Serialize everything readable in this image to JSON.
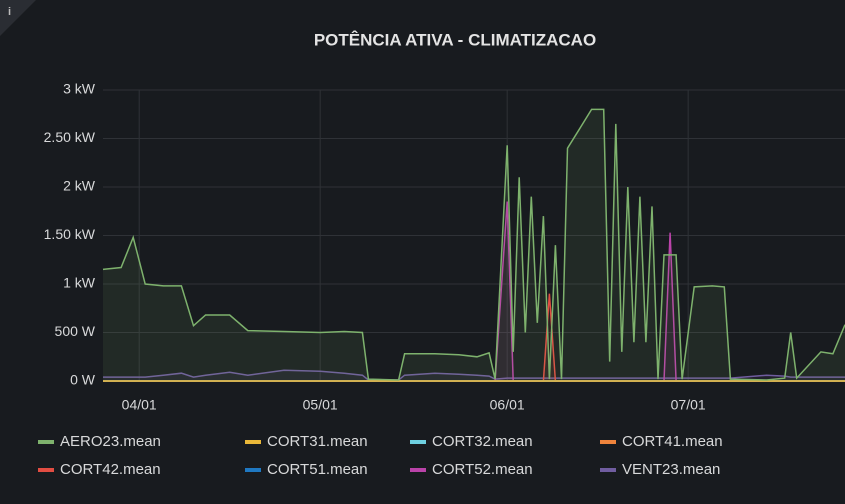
{
  "chart_data": {
    "type": "line",
    "title": "POTÊNCIA ATIVA - CLIMATIZACAO",
    "x": [
      "03/26",
      "03/29",
      "03/31",
      "04/02",
      "04/05",
      "04/08",
      "04/10",
      "04/12",
      "04/16",
      "04/19",
      "04/25",
      "05/01",
      "05/05",
      "05/08",
      "05/09",
      "05/14",
      "05/15",
      "05/20",
      "05/24",
      "05/27",
      "05/29",
      "05/30",
      "06/01",
      "06/02",
      "06/03",
      "06/04",
      "06/05",
      "06/06",
      "06/07",
      "06/08",
      "06/09",
      "06/10",
      "06/11",
      "06/13",
      "06/15",
      "06/17",
      "06/18",
      "06/19",
      "06/20",
      "06/21",
      "06/22",
      "06/23",
      "06/24",
      "06/25",
      "06/26",
      "06/27",
      "06/28",
      "06/29",
      "06/30",
      "07/02",
      "07/05",
      "07/07",
      "07/08",
      "07/14",
      "07/17",
      "07/18",
      "07/19",
      "07/23",
      "07/25",
      "07/27"
    ],
    "xlim": [
      "03/26",
      "07/27"
    ],
    "xticks": [
      "04/01",
      "05/01",
      "06/01",
      "07/01"
    ],
    "ylim": [
      0,
      3000
    ],
    "yticks": [
      {
        "value": 0,
        "label": "0 W"
      },
      {
        "value": 500,
        "label": "500 W"
      },
      {
        "value": 1000,
        "label": "1 kW"
      },
      {
        "value": 1500,
        "label": "1.50 kW"
      },
      {
        "value": 2000,
        "label": "2 kW"
      },
      {
        "value": 2500,
        "label": "2.50 kW"
      },
      {
        "value": 3000,
        "label": "3 kW"
      }
    ],
    "grid": true,
    "series": [
      {
        "name": "AERO23.mean",
        "color": "#7eb26d",
        "values": [
          1150,
          1170,
          1480,
          1000,
          980,
          980,
          570,
          680,
          680,
          520,
          510,
          500,
          510,
          500,
          20,
          10,
          280,
          280,
          270,
          250,
          290,
          20,
          2430,
          300,
          2100,
          500,
          1900,
          600,
          1700,
          20,
          1400,
          20,
          2400,
          2600,
          2800,
          2800,
          200,
          2650,
          300,
          2000,
          400,
          1900,
          400,
          1800,
          20,
          1300,
          1300,
          1300,
          20,
          970,
          980,
          970,
          20,
          10,
          30,
          500,
          30,
          300,
          280,
          580
        ]
      },
      {
        "name": "CORT31.mean",
        "color": "#eab839",
        "values": [
          0,
          0,
          0,
          0,
          0,
          0,
          0,
          0,
          0,
          0,
          0,
          0,
          0,
          0,
          0,
          0,
          0,
          0,
          0,
          0,
          0,
          0,
          0,
          0,
          0,
          0,
          0,
          0,
          0,
          0,
          0,
          0,
          0,
          0,
          0,
          0,
          0,
          0,
          0,
          0,
          0,
          0,
          0,
          0,
          0,
          0,
          0,
          0,
          0,
          0,
          0,
          0,
          0,
          0,
          0,
          0,
          0,
          0,
          0,
          0
        ]
      },
      {
        "name": "CORT32.mean",
        "color": "#6ed0e0",
        "values": [
          0,
          0,
          0,
          0,
          0,
          0,
          0,
          0,
          0,
          0,
          0,
          0,
          0,
          0,
          0,
          0,
          0,
          0,
          0,
          0,
          0,
          0,
          0,
          0,
          0,
          0,
          0,
          0,
          0,
          0,
          0,
          0,
          0,
          0,
          0,
          0,
          0,
          0,
          0,
          0,
          0,
          0,
          0,
          0,
          0,
          0,
          0,
          0,
          0,
          0,
          0,
          0,
          0,
          0,
          0,
          0,
          0,
          0,
          0,
          0
        ]
      },
      {
        "name": "CORT41.mean",
        "color": "#ef843c",
        "values": [
          0,
          0,
          0,
          0,
          0,
          0,
          0,
          0,
          0,
          0,
          0,
          0,
          0,
          0,
          0,
          0,
          0,
          0,
          0,
          0,
          0,
          0,
          0,
          0,
          0,
          0,
          0,
          0,
          0,
          0,
          0,
          0,
          0,
          0,
          0,
          0,
          0,
          0,
          0,
          0,
          0,
          0,
          0,
          0,
          0,
          0,
          0,
          0,
          0,
          0,
          0,
          0,
          0,
          0,
          0,
          0,
          0,
          0,
          0,
          0
        ]
      },
      {
        "name": "CORT42.mean",
        "color": "#e24d42",
        "values": [
          0,
          0,
          0,
          0,
          0,
          0,
          0,
          0,
          0,
          0,
          0,
          0,
          0,
          0,
          0,
          0,
          0,
          0,
          0,
          0,
          0,
          0,
          0,
          0,
          0,
          0,
          0,
          0,
          0,
          900,
          0,
          0,
          0,
          0,
          0,
          0,
          0,
          0,
          0,
          0,
          0,
          0,
          0,
          0,
          0,
          0,
          0,
          0,
          0,
          0,
          0,
          0,
          0,
          0,
          0,
          0,
          0,
          0,
          0,
          0
        ]
      },
      {
        "name": "CORT51.mean",
        "color": "#1f78c1",
        "values": [
          0,
          0,
          0,
          0,
          0,
          0,
          0,
          0,
          0,
          0,
          0,
          0,
          0,
          0,
          0,
          0,
          0,
          0,
          0,
          0,
          0,
          0,
          0,
          0,
          0,
          0,
          0,
          0,
          0,
          0,
          0,
          0,
          0,
          0,
          0,
          0,
          0,
          0,
          0,
          0,
          0,
          0,
          0,
          0,
          0,
          0,
          0,
          0,
          0,
          0,
          0,
          0,
          0,
          0,
          0,
          0,
          0,
          0,
          0,
          0
        ]
      },
      {
        "name": "CORT52.mean",
        "color": "#ba43a9",
        "values": [
          0,
          0,
          0,
          0,
          0,
          0,
          0,
          0,
          0,
          0,
          0,
          0,
          0,
          0,
          0,
          0,
          0,
          0,
          0,
          0,
          0,
          0,
          1850,
          0,
          0,
          0,
          0,
          0,
          0,
          0,
          0,
          0,
          0,
          0,
          0,
          0,
          0,
          0,
          0,
          0,
          0,
          0,
          0,
          0,
          0,
          0,
          1530,
          0,
          0,
          0,
          0,
          0,
          0,
          0,
          0,
          0,
          0,
          0,
          0,
          0
        ]
      },
      {
        "name": "VENT23.mean",
        "color": "#705da0",
        "values": [
          40,
          40,
          40,
          40,
          60,
          80,
          40,
          60,
          90,
          60,
          110,
          100,
          80,
          60,
          10,
          10,
          60,
          80,
          70,
          60,
          50,
          20,
          30,
          30,
          30,
          30,
          30,
          30,
          30,
          30,
          30,
          30,
          30,
          30,
          30,
          30,
          30,
          30,
          30,
          30,
          30,
          30,
          30,
          30,
          30,
          30,
          30,
          30,
          30,
          30,
          30,
          30,
          30,
          60,
          50,
          40,
          40,
          40,
          40,
          40
        ]
      }
    ]
  }
}
